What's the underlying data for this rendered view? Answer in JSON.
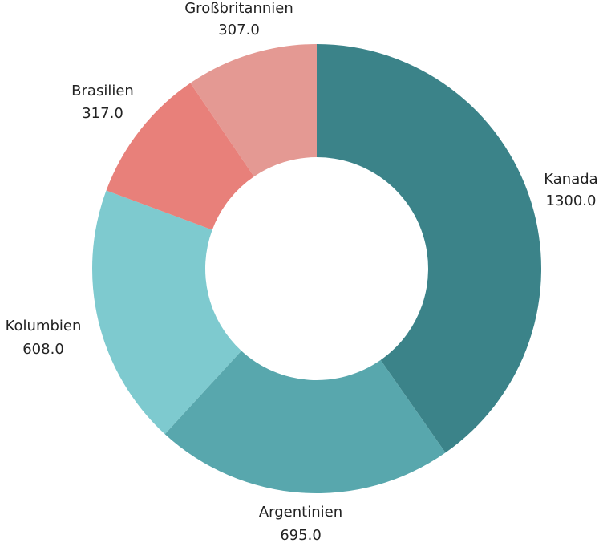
{
  "chart_data": {
    "type": "pie",
    "donut": true,
    "title": "",
    "legend": "none",
    "grid": false,
    "slices": [
      {
        "label": "Kanada",
        "value": 1300.0,
        "value_text": "1300.0",
        "color": "#3b8389"
      },
      {
        "label": "Argentinien",
        "value": 695.0,
        "value_text": "695.0",
        "color": "#58a7ad"
      },
      {
        "label": "Kolumbien",
        "value": 608.0,
        "value_text": "608.0",
        "color": "#7ecacf"
      },
      {
        "label": "Brasilien",
        "value": 317.0,
        "value_text": "317.0",
        "color": "#e8807a"
      },
      {
        "label": "Großbritannien",
        "value": 307.0,
        "value_text": "307.0",
        "color": "#e49993"
      }
    ]
  }
}
